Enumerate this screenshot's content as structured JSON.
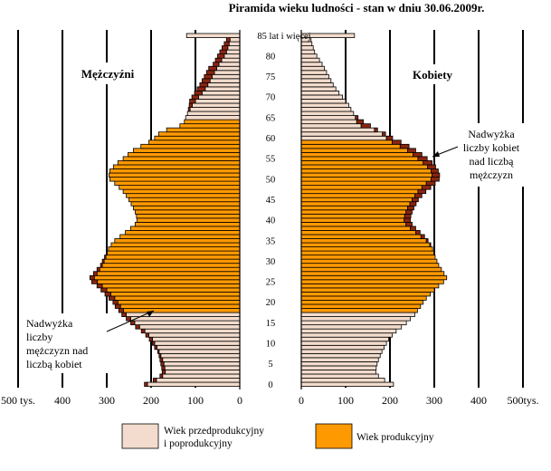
{
  "chart_data": {
    "type": "population-pyramid",
    "title": "Piramida wieku ludności - stan w dniu 30.06.2009r.",
    "left_label": "Mężczyźni",
    "right_label": "Kobiety",
    "x_unit": "tys.",
    "xlim": [
      0,
      500
    ],
    "x_ticks_left": [
      "500 tys.",
      "400",
      "300",
      "200",
      "100",
      "0"
    ],
    "x_ticks_right": [
      "0",
      "100",
      "200",
      "300",
      "400",
      "500tys."
    ],
    "age_ticks": [
      "0",
      "5",
      "10",
      "15",
      "20",
      "25",
      "30",
      "35",
      "40",
      "45",
      "50",
      "55",
      "60",
      "65",
      "70",
      "75",
      "80",
      "85 lat i więcej"
    ],
    "ages": [
      0,
      1,
      2,
      3,
      4,
      5,
      6,
      7,
      8,
      9,
      10,
      11,
      12,
      13,
      14,
      15,
      16,
      17,
      18,
      19,
      20,
      21,
      22,
      23,
      24,
      25,
      26,
      27,
      28,
      29,
      30,
      31,
      32,
      33,
      34,
      35,
      36,
      37,
      38,
      39,
      40,
      41,
      42,
      43,
      44,
      45,
      46,
      47,
      48,
      49,
      50,
      51,
      52,
      53,
      54,
      55,
      56,
      57,
      58,
      59,
      60,
      61,
      62,
      63,
      64,
      65,
      66,
      67,
      68,
      69,
      70,
      71,
      72,
      73,
      74,
      75,
      76,
      77,
      78,
      79,
      80,
      81,
      82,
      83,
      84,
      85
    ],
    "men": [
      215,
      195,
      180,
      175,
      176,
      178,
      180,
      182,
      185,
      192,
      197,
      204,
      212,
      222,
      235,
      246,
      256,
      266,
      273,
      281,
      286,
      295,
      304,
      313,
      322,
      334,
      338,
      330,
      322,
      314,
      310,
      305,
      300,
      296,
      290,
      282,
      270,
      258,
      246,
      236,
      232,
      233,
      236,
      240,
      245,
      250,
      256,
      263,
      272,
      282,
      293,
      295,
      293,
      285,
      275,
      263,
      252,
      240,
      223,
      205,
      192,
      183,
      165,
      135,
      125,
      122,
      118,
      116,
      114,
      113,
      108,
      102,
      96,
      90,
      85,
      80,
      75,
      70,
      60,
      55,
      50,
      45,
      40,
      35,
      30,
      120
    ],
    "women": [
      208,
      188,
      174,
      168,
      169,
      171,
      174,
      178,
      182,
      187,
      192,
      197,
      205,
      214,
      226,
      237,
      246,
      256,
      262,
      269,
      275,
      282,
      291,
      300,
      310,
      321,
      328,
      322,
      316,
      310,
      306,
      302,
      299,
      296,
      292,
      286,
      278,
      268,
      258,
      250,
      246,
      247,
      250,
      254,
      259,
      264,
      272,
      281,
      292,
      302,
      311,
      312,
      309,
      303,
      295,
      284,
      272,
      258,
      243,
      225,
      206,
      190,
      172,
      156,
      140,
      128,
      118,
      112,
      107,
      100,
      93,
      85,
      78,
      72,
      67,
      62,
      57,
      52,
      47,
      41,
      35,
      30,
      27,
      24,
      22,
      120
    ],
    "series": [
      {
        "name": "Wiek przedprodukcyjny i poprodukcyjny",
        "color": "#f3dccd"
      },
      {
        "name": "Wiek produkcyjny",
        "color": "#ff9900"
      },
      {
        "name": "Nadwyżka",
        "color": "#8b2510"
      }
    ],
    "working_age_men": [
      18,
      64
    ],
    "working_age_women": [
      18,
      59
    ],
    "annotations": {
      "men_surplus": [
        "Nadwyżka",
        "liczby",
        "mężczyzn nad",
        "liczbą kobiet"
      ],
      "women_surplus": [
        "Nadwyżka",
        "liczby kobiet",
        "nad liczbą",
        "mężczyzn"
      ]
    },
    "legend": [
      {
        "lines": [
          "Wiek przedprodukcyjny",
          "i poprodukcyjny"
        ],
        "color": "#f3dccd"
      },
      {
        "lines": [
          "Wiek produkcyjny"
        ],
        "color": "#ff9900"
      }
    ]
  }
}
